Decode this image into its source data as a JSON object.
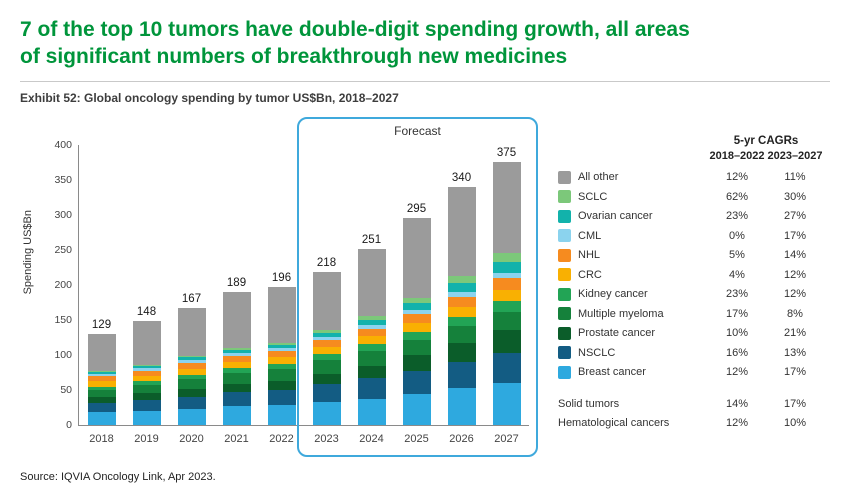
{
  "header": {
    "title_line1": "7 of the top 10 tumors have double-digit spending growth, all areas",
    "title_line2": "of significant numbers of breakthrough new medicines",
    "exhibit": "Exhibit 52: Global oncology spending by tumor US$Bn, 2018–2027"
  },
  "source": "Source: IQVIA Oncology Link, Apr 2023.",
  "chart_data": {
    "type": "bar",
    "stacked": true,
    "ylabel": "Spending US$Bn",
    "ylim": [
      0,
      400
    ],
    "yticks": [
      0,
      50,
      100,
      150,
      200,
      250,
      300,
      350,
      400
    ],
    "categories": [
      "2018",
      "2019",
      "2020",
      "2021",
      "2022",
      "2023",
      "2024",
      "2025",
      "2026",
      "2027"
    ],
    "totals": [
      129,
      148,
      167,
      189,
      196,
      218,
      251,
      295,
      340,
      375
    ],
    "forecast_label": "Forecast",
    "forecast_years": [
      "2023",
      "2024",
      "2025",
      "2026",
      "2027"
    ],
    "series": [
      {
        "name": "Breast cancer",
        "color": "#2EA9DF",
        "values": [
          18,
          20,
          23,
          26,
          28,
          32,
          37,
          44,
          52,
          60
        ]
      },
      {
        "name": "NSCLC",
        "color": "#135C83",
        "values": [
          13,
          15,
          17,
          20,
          22,
          26,
          29,
          33,
          38,
          43
        ]
      },
      {
        "name": "Prostate cancer",
        "color": "#0B5D2A",
        "values": [
          9,
          10,
          11,
          12,
          13,
          15,
          18,
          22,
          27,
          32
        ]
      },
      {
        "name": "Multiple myeloma",
        "color": "#15813B",
        "values": [
          10,
          12,
          14,
          16,
          16,
          19,
          21,
          22,
          24,
          26
        ]
      },
      {
        "name": "Kidney cancer",
        "color": "#22A455",
        "values": [
          4,
          5,
          6,
          7,
          8,
          9,
          10,
          12,
          13,
          15
        ]
      },
      {
        "name": "CRC",
        "color": "#F9B002",
        "values": [
          8,
          8,
          9,
          9,
          9,
          10,
          11,
          12,
          14,
          16
        ]
      },
      {
        "name": "NHL",
        "color": "#F68B1F",
        "values": [
          7,
          7,
          8,
          8,
          9,
          10,
          11,
          13,
          15,
          17
        ]
      },
      {
        "name": "CML",
        "color": "#8BD3EE",
        "values": [
          4,
          4,
          4,
          4,
          4,
          4,
          5,
          6,
          7,
          8
        ]
      },
      {
        "name": "Ovarian cancer",
        "color": "#12B2AB",
        "values": [
          2,
          3,
          4,
          4,
          5,
          6,
          8,
          10,
          13,
          16
        ]
      },
      {
        "name": "SCLC",
        "color": "#7CC87A",
        "values": [
          1,
          1,
          2,
          3,
          3,
          4,
          5,
          7,
          9,
          12
        ]
      },
      {
        "name": "All other",
        "color": "#9B9B9B",
        "values": [
          53,
          63,
          69,
          80,
          79,
          83,
          96,
          114,
          128,
          130
        ]
      }
    ],
    "legend": {
      "header": "5-yr CAGRs",
      "col1": "2018–2022",
      "col2": "2023–2027",
      "items": [
        {
          "label": "All other",
          "color": "#9B9B9B",
          "cagr_2018_2022": "12%",
          "cagr_2023_2027": "11%"
        },
        {
          "label": "SCLC",
          "color": "#7CC87A",
          "cagr_2018_2022": "62%",
          "cagr_2023_2027": "30%"
        },
        {
          "label": "Ovarian cancer",
          "color": "#12B2AB",
          "cagr_2018_2022": "23%",
          "cagr_2023_2027": "27%"
        },
        {
          "label": "CML",
          "color": "#8BD3EE",
          "cagr_2018_2022": "0%",
          "cagr_2023_2027": "17%"
        },
        {
          "label": "NHL",
          "color": "#F68B1F",
          "cagr_2018_2022": "5%",
          "cagr_2023_2027": "14%"
        },
        {
          "label": "CRC",
          "color": "#F9B002",
          "cagr_2018_2022": "4%",
          "cagr_2023_2027": "12%"
        },
        {
          "label": "Kidney cancer",
          "color": "#22A455",
          "cagr_2018_2022": "23%",
          "cagr_2023_2027": "12%"
        },
        {
          "label": "Multiple myeloma",
          "color": "#15813B",
          "cagr_2018_2022": "17%",
          "cagr_2023_2027": "8%"
        },
        {
          "label": "Prostate cancer",
          "color": "#0B5D2A",
          "cagr_2018_2022": "10%",
          "cagr_2023_2027": "21%"
        },
        {
          "label": "NSCLC",
          "color": "#135C83",
          "cagr_2018_2022": "16%",
          "cagr_2023_2027": "13%"
        },
        {
          "label": "Breast cancer",
          "color": "#2EA9DF",
          "cagr_2018_2022": "12%",
          "cagr_2023_2027": "17%"
        }
      ],
      "summary_rows": [
        {
          "label": "Solid tumors",
          "cagr_2018_2022": "14%",
          "cagr_2023_2027": "17%"
        },
        {
          "label": "Hematological cancers",
          "cagr_2018_2022": "12%",
          "cagr_2023_2027": "10%"
        }
      ]
    }
  }
}
